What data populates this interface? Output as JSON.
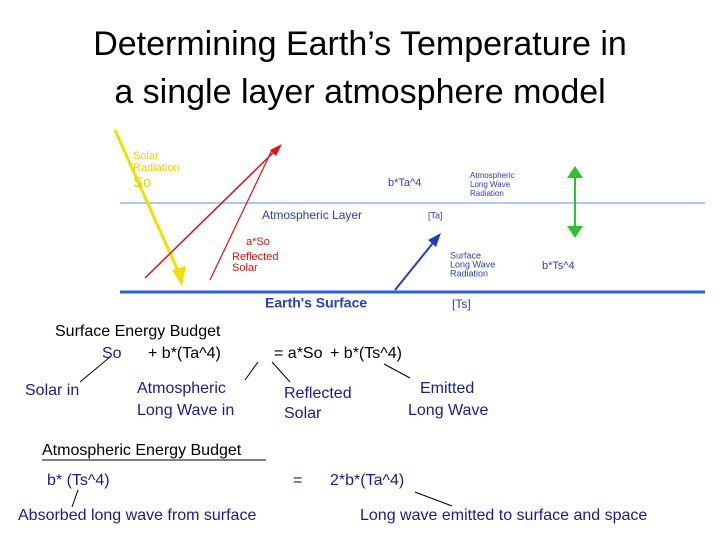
{
  "title": [
    "Determining Earth’s Temperature in",
    "a single layer atmosphere model"
  ],
  "diagram": {
    "solar_radiation": [
      "Solar",
      "Radiation"
    ],
    "so": "So",
    "atmos_flux": "b*Ta^4",
    "atmos_lw_radiation": [
      "Atmospheric",
      "Long Wave",
      "Radiation"
    ],
    "atmospheric_layer": "Atmospheric Layer",
    "ta": "[Ta]",
    "reflected": [
      "a*So",
      "Reflected",
      "Solar"
    ],
    "surface_lw_radiation": [
      "Surface",
      "Long Wave",
      "Radiation"
    ],
    "surface_flux": "b*Ts^4",
    "earths_surface": "Earth's Surface",
    "ts": "[Ts]"
  },
  "surface_budget": {
    "heading": "Surface Energy Budget",
    "terms": [
      "So",
      "+ b*(Ta^4)",
      "= a*So",
      "+ b*(Ts^4)"
    ],
    "labels": [
      "Solar in",
      [
        "Atmospheric",
        "Long Wave in"
      ],
      [
        "Reflected",
        "Solar"
      ],
      [
        "Emitted",
        "Long Wave"
      ]
    ]
  },
  "atmospheric_budget": {
    "heading": "Atmospheric Energy Budget",
    "terms": [
      "b* (Ts^4)",
      "=",
      "2*b*(Ta^4)"
    ],
    "labels": [
      "Absorbed long wave from surface",
      "Long wave emitted to surface and space"
    ]
  }
}
